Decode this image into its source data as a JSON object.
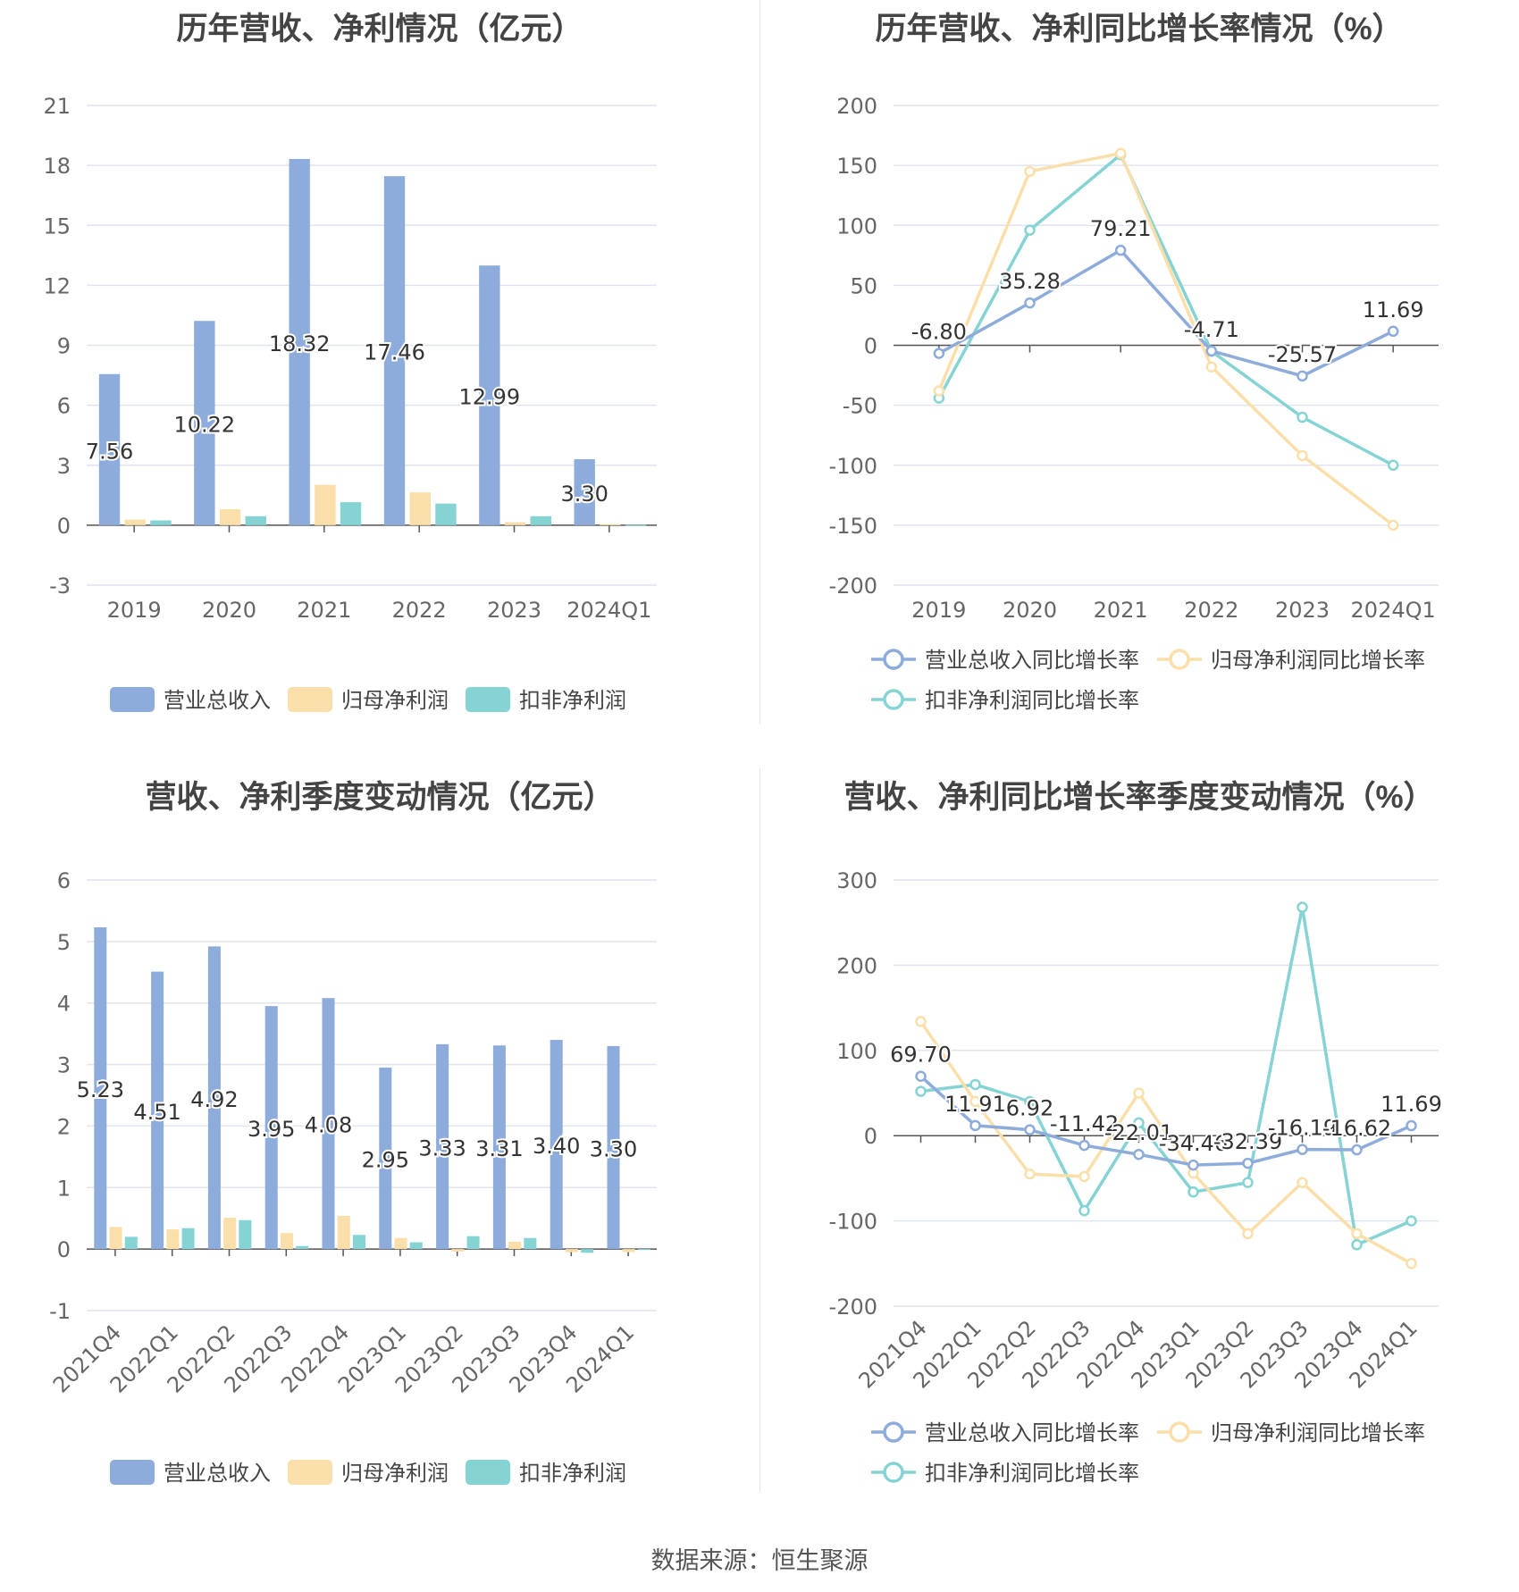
{
  "source_label": "数据来源：恒生聚源",
  "colors": {
    "revenue": "#8eacdb",
    "net_profit": "#fbdfaa",
    "deducted_profit": "#86d3d3"
  },
  "chart_data": [
    {
      "type": "bar",
      "title": "历年营收、净利情况（亿元）",
      "categories": [
        "2019",
        "2020",
        "2021",
        "2022",
        "2023",
        "2024Q1"
      ],
      "ylim": [
        -3,
        21
      ],
      "yticks": [
        -3,
        0,
        3,
        6,
        9,
        12,
        15,
        18,
        21
      ],
      "grid": true,
      "legend_position": "bottom",
      "series": [
        {
          "name": "营业总收入",
          "values": [
            7.56,
            10.22,
            18.32,
            17.46,
            12.99,
            3.3
          ],
          "labels": [
            "7.56",
            "10.22",
            "18.32",
            "17.46",
            "12.99",
            "3.30"
          ]
        },
        {
          "name": "归母净利润",
          "values": [
            0.28,
            0.8,
            2.02,
            1.64,
            0.15,
            0.05
          ]
        },
        {
          "name": "扣非净利润",
          "values": [
            0.24,
            0.45,
            1.15,
            1.08,
            0.45,
            0.02
          ]
        }
      ]
    },
    {
      "type": "line",
      "title": "历年营收、净利同比增长率情况（%）",
      "categories": [
        "2019",
        "2020",
        "2021",
        "2022",
        "2023",
        "2024Q1"
      ],
      "ylim": [
        -200,
        200
      ],
      "yticks": [
        -200,
        -150,
        -100,
        -50,
        0,
        50,
        100,
        150,
        200
      ],
      "grid": true,
      "legend_position": "bottom",
      "series": [
        {
          "name": "营业总收入同比增长率",
          "values": [
            -6.8,
            35.28,
            79.21,
            -4.71,
            -25.57,
            11.69
          ],
          "labels": [
            "-6.80",
            "35.28",
            "79.21",
            "-4.71",
            "-25.57",
            "11.69"
          ]
        },
        {
          "name": "归母净利润同比增长率",
          "values": [
            -38,
            145,
            160,
            -18,
            -92,
            -150
          ]
        },
        {
          "name": "扣非净利润同比增长率",
          "values": [
            -44,
            96,
            159,
            -5,
            -60,
            -100
          ]
        }
      ]
    },
    {
      "type": "bar",
      "title": "营收、净利季度变动情况（亿元）",
      "categories": [
        "2021Q4",
        "2022Q1",
        "2022Q2",
        "2022Q3",
        "2022Q4",
        "2023Q1",
        "2023Q2",
        "2023Q3",
        "2023Q4",
        "2024Q1"
      ],
      "ylim": [
        -1,
        6
      ],
      "yticks": [
        -1,
        0,
        1,
        2,
        3,
        4,
        5,
        6
      ],
      "grid": true,
      "legend_position": "bottom",
      "series": [
        {
          "name": "营业总收入",
          "values": [
            5.23,
            4.51,
            4.92,
            3.95,
            4.08,
            2.95,
            3.33,
            3.31,
            3.4,
            3.3
          ],
          "labels": [
            "5.23",
            "4.51",
            "4.92",
            "3.95",
            "4.08",
            "2.95",
            "3.33",
            "3.31",
            "3.40",
            "3.30"
          ]
        },
        {
          "name": "归母净利润",
          "values": [
            0.36,
            0.32,
            0.51,
            0.26,
            0.54,
            0.18,
            -0.04,
            0.12,
            -0.05,
            -0.05
          ]
        },
        {
          "name": "扣非净利润",
          "values": [
            0.2,
            0.34,
            0.47,
            0.05,
            0.23,
            0.11,
            0.21,
            0.18,
            -0.06,
            0.0
          ]
        }
      ]
    },
    {
      "type": "line",
      "title": "营收、净利同比增长率季度变动情况（%）",
      "categories": [
        "2021Q4",
        "2022Q1",
        "2022Q2",
        "2022Q3",
        "2022Q4",
        "2023Q1",
        "2023Q2",
        "2023Q3",
        "2023Q4",
        "2024Q1"
      ],
      "ylim": [
        -200,
        300
      ],
      "yticks": [
        -200,
        -100,
        0,
        100,
        200,
        300
      ],
      "grid": true,
      "legend_position": "bottom",
      "series": [
        {
          "name": "营业总收入同比增长率",
          "values": [
            69.7,
            11.91,
            6.92,
            -11.42,
            -22.01,
            -34.46,
            -32.39,
            -16.19,
            -16.62,
            11.69
          ],
          "labels": [
            "69.70",
            "11.91",
            "6.92",
            "-11.42",
            "-22.01",
            "-34.46",
            "-32.39",
            "-16.19",
            "-16.62",
            "11.69"
          ]
        },
        {
          "name": "归母净利润同比增长率",
          "values": [
            134,
            40,
            -45,
            -48,
            50,
            -44,
            -115,
            -55,
            -115,
            -150
          ]
        },
        {
          "name": "扣非净利润同比增长率",
          "values": [
            52,
            60,
            40,
            -88,
            15,
            -66,
            -55,
            268,
            -128,
            -100
          ]
        }
      ]
    }
  ]
}
